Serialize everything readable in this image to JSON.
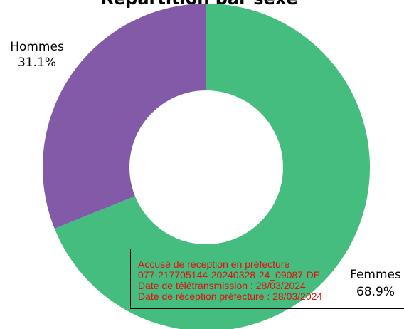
{
  "chart_data": {
    "type": "pie",
    "title": "Répartition par sexe",
    "donut": true,
    "categories": [
      "Femmes",
      "Hommes"
    ],
    "values": [
      68.9,
      31.1
    ],
    "labels": [
      "68.9%",
      "31.1%"
    ],
    "colors": [
      "#45bd7f",
      "#825aa8"
    ]
  },
  "stamp": {
    "line1": "Accusé de réception en préfecture",
    "line2": "077-217705144-20240328-24_09087-DE",
    "line3": "Date de télétransmission : 28/03/2024",
    "line4": "Date de réception préfecture : 28/03/2024"
  }
}
